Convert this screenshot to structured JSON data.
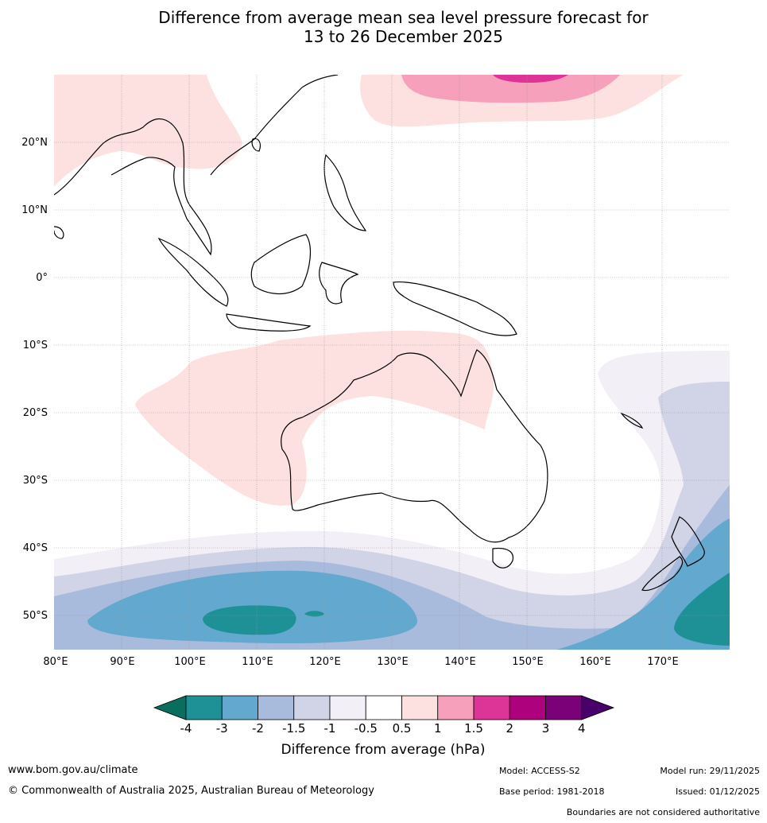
{
  "title": {
    "line1": "Difference from average mean sea level pressure forecast for",
    "line2": "13 to 26 December 2025"
  },
  "map": {
    "lat_labels": [
      "20°N",
      "10°N",
      "0°",
      "10°S",
      "20°S",
      "30°S",
      "40°S",
      "50°S"
    ],
    "lon_labels": [
      "80°E",
      "90°E",
      "100°E",
      "110°E",
      "120°E",
      "130°E",
      "140°E",
      "150°E",
      "160°E",
      "170°E"
    ],
    "lat_range": [
      -55,
      30
    ],
    "lon_range": [
      80,
      180
    ]
  },
  "colorbar": {
    "title": "Difference from average (hPa)",
    "tick_labels": [
      "-4",
      "-3",
      "-2",
      "-1.5",
      "-1",
      "-0.5",
      "0.5",
      "1",
      "1.5",
      "2",
      "3",
      "4"
    ],
    "colors": [
      "#0a6e5e",
      "#1d9196",
      "#62a8cf",
      "#a8bbdc",
      "#d1d3e6",
      "#f3eff6",
      "#ffffff",
      "#fde0e0",
      "#f6a0bb",
      "#dd3497",
      "#ae017e",
      "#7a0177",
      "#49006a"
    ]
  },
  "footer": {
    "website": "www.bom.gov.au/climate",
    "copyright": "© Commonwealth of Australia 2025, Australian Bureau of Meteorology",
    "model": "Model: ACCESS-S2",
    "model_run": "Model run: 29/11/2025",
    "base_period": "Base period: 1981-2018",
    "issued": "Issued: 01/12/2025",
    "disclaimer": "Boundaries are not considered authoritative"
  }
}
